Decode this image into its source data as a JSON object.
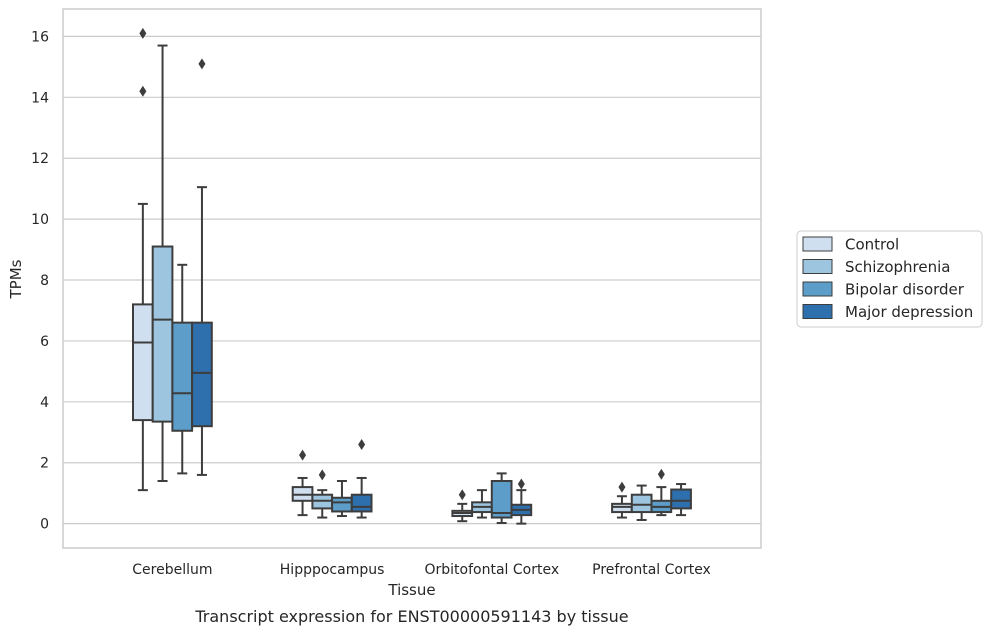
{
  "chart_data": {
    "type": "box",
    "title": "",
    "caption": "Transcript expression for ENST00000591143 by tissue",
    "xlabel": "Tissue",
    "ylabel": "TPMs",
    "ylim": [
      -0.8,
      16.9
    ],
    "yticks": [
      0,
      2,
      4,
      6,
      8,
      10,
      12,
      14,
      16
    ],
    "grid": "horizontal",
    "legend_position": "right",
    "categories": [
      "Cerebellum",
      "Hipppocampus",
      "Orbitofontal Cortex",
      "Prefrontal Cortex"
    ],
    "series": [
      {
        "name": "Control",
        "color": "#d0dfef",
        "boxes": [
          {
            "whislo": 1.1,
            "q1": 3.4,
            "med": 5.95,
            "q3": 7.2,
            "whishi": 10.5,
            "fliers": [
              14.2,
              16.1
            ]
          },
          {
            "whislo": 0.28,
            "q1": 0.75,
            "med": 0.95,
            "q3": 1.2,
            "whishi": 1.5,
            "fliers": [
              2.25
            ]
          },
          {
            "whislo": 0.08,
            "q1": 0.25,
            "med": 0.35,
            "q3": 0.42,
            "whishi": 0.65,
            "fliers": [
              0.95
            ]
          },
          {
            "whislo": 0.2,
            "q1": 0.38,
            "med": 0.55,
            "q3": 0.65,
            "whishi": 0.9,
            "fliers": [
              1.2
            ]
          }
        ]
      },
      {
        "name": "Schizophrenia",
        "color": "#9ec5df",
        "boxes": [
          {
            "whislo": 1.4,
            "q1": 3.35,
            "med": 6.7,
            "q3": 9.1,
            "whishi": 15.7,
            "fliers": []
          },
          {
            "whislo": 0.2,
            "q1": 0.5,
            "med": 0.75,
            "q3": 0.95,
            "whishi": 1.1,
            "fliers": [
              1.6
            ]
          },
          {
            "whislo": 0.2,
            "q1": 0.38,
            "med": 0.55,
            "q3": 0.7,
            "whishi": 1.1,
            "fliers": []
          },
          {
            "whislo": 0.12,
            "q1": 0.38,
            "med": 0.62,
            "q3": 0.95,
            "whishi": 1.25,
            "fliers": []
          }
        ]
      },
      {
        "name": "Bipolar disorder",
        "color": "#5d9dc9",
        "boxes": [
          {
            "whislo": 1.65,
            "q1": 3.05,
            "med": 4.28,
            "q3": 6.6,
            "whishi": 8.5,
            "fliers": []
          },
          {
            "whislo": 0.25,
            "q1": 0.4,
            "med": 0.7,
            "q3": 0.85,
            "whishi": 1.4,
            "fliers": []
          },
          {
            "whislo": 0.02,
            "q1": 0.2,
            "med": 0.35,
            "q3": 1.4,
            "whishi": 1.65,
            "fliers": []
          },
          {
            "whislo": 0.28,
            "q1": 0.38,
            "med": 0.55,
            "q3": 0.75,
            "whishi": 1.2,
            "fliers": [
              1.62
            ]
          }
        ]
      },
      {
        "name": "Major depression",
        "color": "#2e6fad",
        "boxes": [
          {
            "whislo": 1.6,
            "q1": 3.2,
            "med": 4.95,
            "q3": 6.6,
            "whishi": 11.05,
            "fliers": [
              15.1
            ]
          },
          {
            "whislo": 0.2,
            "q1": 0.4,
            "med": 0.55,
            "q3": 0.95,
            "whishi": 1.5,
            "fliers": [
              2.6
            ]
          },
          {
            "whislo": 0.0,
            "q1": 0.28,
            "med": 0.45,
            "q3": 0.62,
            "whishi": 1.1,
            "fliers": [
              1.3
            ]
          },
          {
            "whislo": 0.28,
            "q1": 0.5,
            "med": 0.75,
            "q3": 1.12,
            "whishi": 1.3,
            "fliers": []
          }
        ]
      }
    ]
  }
}
